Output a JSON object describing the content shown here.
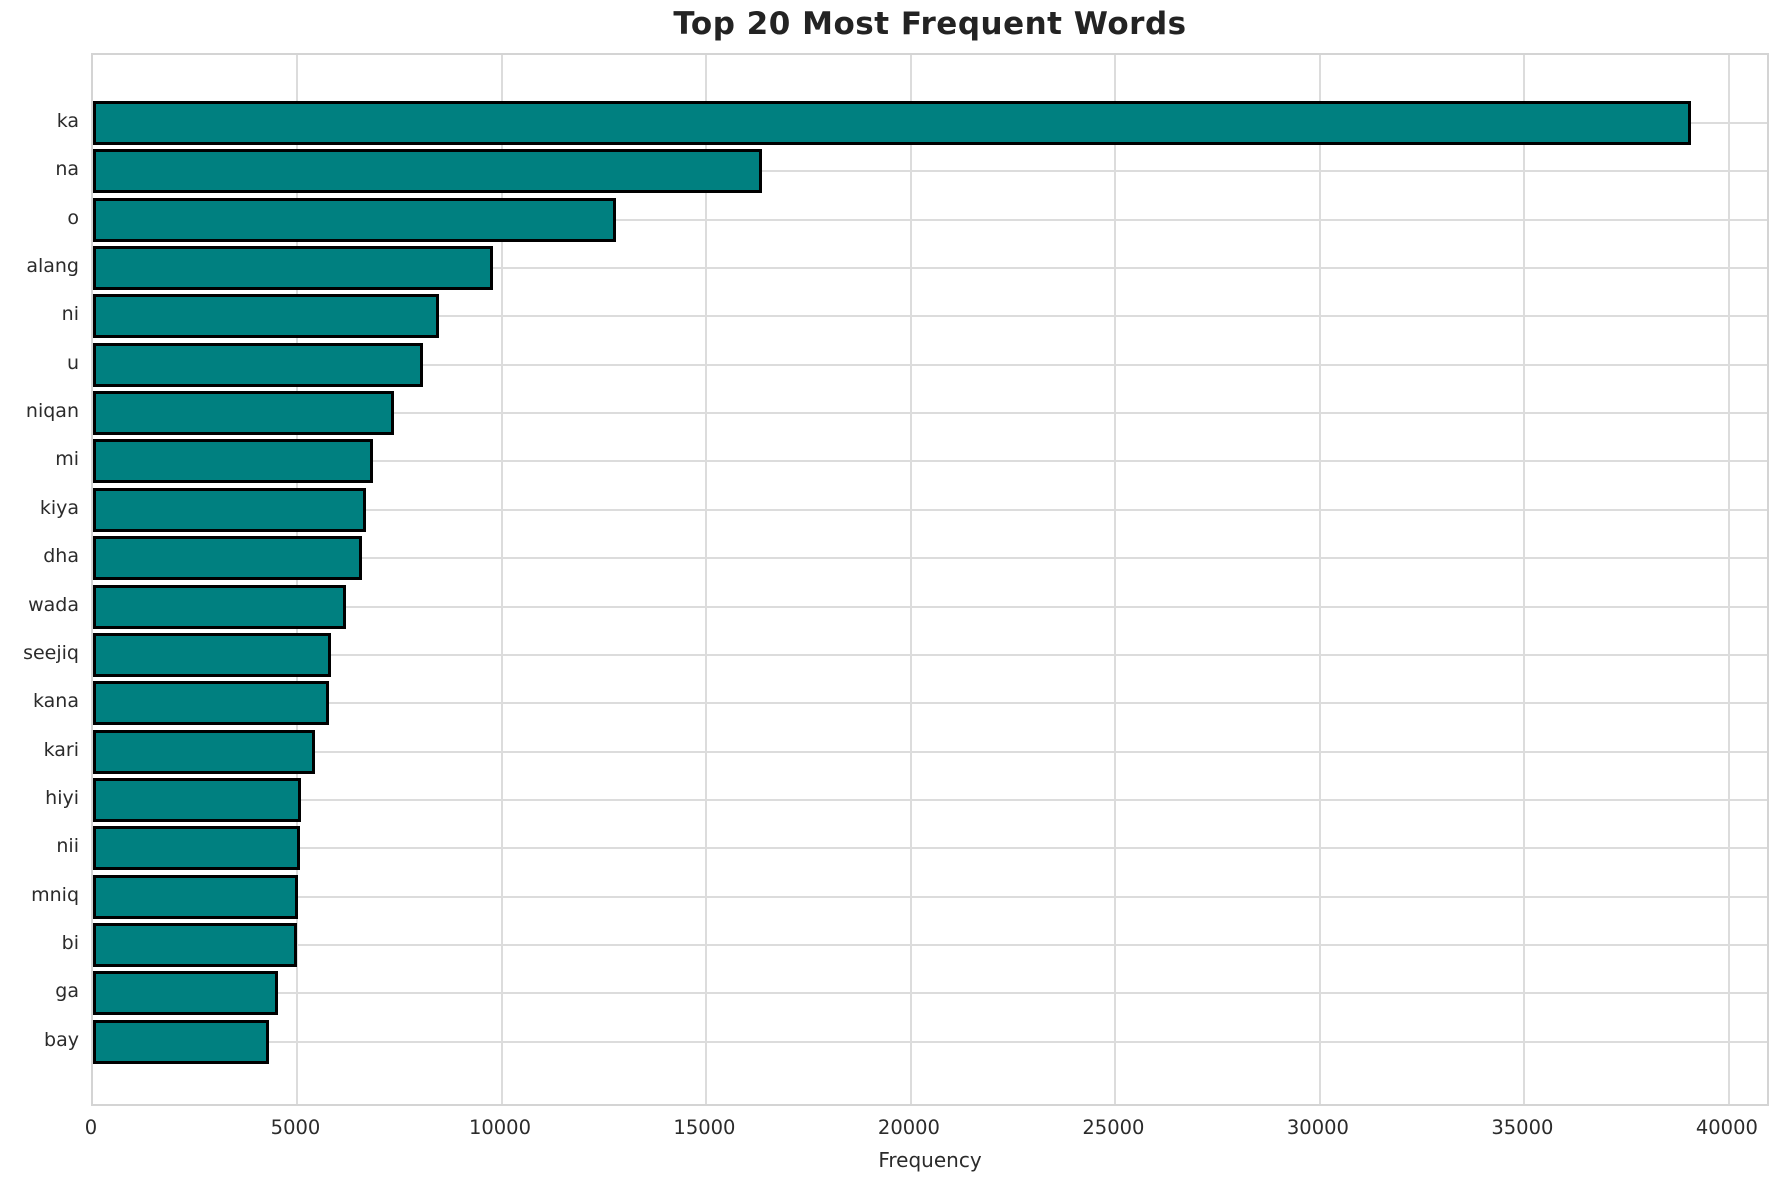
{
  "title": "Top 20 Most Frequent Words",
  "chart_data": {
    "type": "bar",
    "orientation": "horizontal",
    "title": "Top 20 Most Frequent Words",
    "xlabel": "Frequency",
    "ylabel": "",
    "categories": [
      "ka",
      "na",
      "o",
      "alang",
      "ni",
      "u",
      "niqan",
      "mi",
      "kiya",
      "dha",
      "wada",
      "seejiq",
      "kana",
      "kari",
      "hiyi",
      "nii",
      "mniq",
      "bi",
      "ga",
      "bay"
    ],
    "values": [
      39070,
      16350,
      12800,
      9790,
      8470,
      8080,
      7360,
      6840,
      6670,
      6570,
      6180,
      5810,
      5780,
      5430,
      5090,
      5070,
      5020,
      5000,
      4520,
      4300
    ],
    "xlim": [
      0,
      41030
    ],
    "x_ticks": [
      0,
      5000,
      10000,
      15000,
      20000,
      25000,
      30000,
      35000,
      40000
    ],
    "grid": true,
    "legend": false,
    "bar_color": "#008080",
    "bar_edge_color": "#000000",
    "grid_color": "#dcdcdc",
    "spine_color": "#d4d4d4",
    "text_color": "#2b2b2b",
    "background": "#ffffff"
  }
}
